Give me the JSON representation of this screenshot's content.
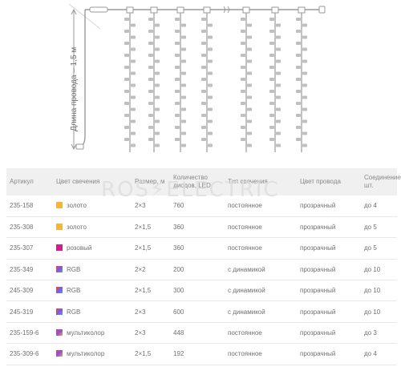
{
  "diagram": {
    "length_label": "Длина провода – 1,5 м",
    "colors": {
      "wire": "#9a9a9a",
      "led": "#bfbfbf",
      "accent_line": "#d6d6d6"
    }
  },
  "watermark": "ROS⚡ELECTRIC",
  "table": {
    "headers": [
      "Артикул",
      "Цвет свечения",
      "Размер, м",
      "Количество диодов, LED",
      "Тип свечения",
      "Цвет провода",
      "Соединение, шт."
    ],
    "rows": [
      {
        "article": "235-158",
        "swatch": "gold",
        "color": "золото",
        "size": "2×3",
        "leds": "760",
        "type": "постоянное",
        "wire": "прозрачный",
        "connect": "до 4"
      },
      {
        "article": "235-308",
        "swatch": "gold",
        "color": "золото",
        "size": "2×1,5",
        "leds": "360",
        "type": "постоянное",
        "wire": "прозрачный",
        "connect": "до 5"
      },
      {
        "article": "235-307",
        "swatch": "pink",
        "color": "розовый",
        "size": "2×1,5",
        "leds": "360",
        "type": "постоянное",
        "wire": "прозрачный",
        "connect": "до 5"
      },
      {
        "article": "235-349",
        "swatch": "rgb",
        "color": "RGB",
        "size": "2×2",
        "leds": "200",
        "type": "с динамикой",
        "wire": "прозрачный",
        "connect": "до 10"
      },
      {
        "article": "245-309",
        "swatch": "rgb",
        "color": "RGB",
        "size": "2×1,5",
        "leds": "300",
        "type": "с динамикой",
        "wire": "прозрачный",
        "connect": "до 10"
      },
      {
        "article": "245-319",
        "swatch": "rgb",
        "color": "RGB",
        "size": "2×3",
        "leds": "600",
        "type": "с динамикой",
        "wire": "прозрачный",
        "connect": "до 10"
      },
      {
        "article": "235-159-6",
        "swatch": "multi",
        "color": "мультиколор",
        "size": "2×3",
        "leds": "448",
        "type": "постоянное",
        "wire": "прозрачный",
        "connect": "до 3"
      },
      {
        "article": "235-309-6",
        "swatch": "multi",
        "color": "мультиколор",
        "size": "2×1,5",
        "leds": "192",
        "type": "постоянное",
        "wire": "прозрачный",
        "connect": "до 4"
      }
    ],
    "swatch_colors": {
      "gold": "#f2b63a",
      "pink": "#c8238a"
    }
  }
}
